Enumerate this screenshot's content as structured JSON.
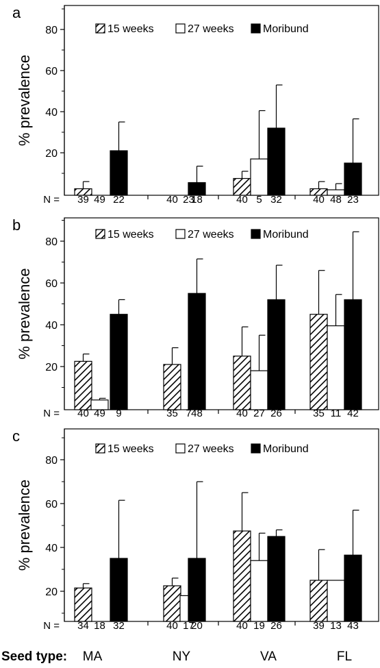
{
  "chart_data": [
    {
      "type": "bar",
      "panel_label": "a",
      "ylabel": "% prevalence",
      "ylim": [
        0,
        95
      ],
      "yticks": [
        20,
        40,
        60,
        80
      ],
      "categories": [
        "MA",
        "NY",
        "VA",
        "FL"
      ],
      "n_label": "N =",
      "legend_position": "top-center",
      "series": [
        {
          "name": "15 weeks",
          "pattern": "hatched",
          "values": [
            2.5,
            0,
            7.5,
            2.5
          ],
          "error": [
            3.5,
            0,
            3.5,
            3.5
          ],
          "n": [
            "39",
            "40",
            "40",
            "40"
          ]
        },
        {
          "name": "27 weeks",
          "pattern": "white",
          "values": [
            0,
            0,
            17,
            2
          ],
          "error": [
            0,
            0,
            23.5,
            3
          ],
          "n": [
            "49",
            "23",
            "5",
            "48"
          ]
        },
        {
          "name": "Moribund",
          "pattern": "black",
          "values": [
            21,
            5.5,
            32,
            15
          ],
          "error": [
            14,
            8,
            21,
            21.5
          ],
          "n": [
            "22",
            "18",
            "32",
            "23"
          ]
        }
      ]
    },
    {
      "type": "bar",
      "panel_label": "b",
      "ylabel": "% prevalence",
      "ylim": [
        0,
        90
      ],
      "yticks": [
        20,
        40,
        60,
        80
      ],
      "categories": [
        "MA",
        "NY",
        "VA",
        "FL"
      ],
      "n_label": "N =",
      "legend_position": "top-center",
      "series": [
        {
          "name": "15 weeks",
          "pattern": "hatched",
          "values": [
            22.5,
            21,
            25,
            45
          ],
          "error": [
            3.5,
            8,
            14,
            21
          ],
          "n": [
            "40",
            "35",
            "40",
            "35"
          ]
        },
        {
          "name": "27 weeks",
          "pattern": "white",
          "values": [
            4,
            0,
            18,
            39.5
          ],
          "error": [
            0.8,
            0,
            17,
            15
          ],
          "n": [
            "49",
            "7",
            "27",
            "11"
          ]
        },
        {
          "name": "Moribund",
          "pattern": "black",
          "values": [
            45,
            55,
            52,
            52
          ],
          "error": [
            7,
            16.5,
            16.5,
            32.5
          ],
          "n": [
            "9",
            "48",
            "26",
            "42"
          ]
        }
      ]
    },
    {
      "type": "bar",
      "panel_label": "c",
      "ylabel": "% prevalence",
      "ylim": [
        10,
        100
      ],
      "yticks": [
        20,
        40,
        60,
        80
      ],
      "categories": [
        "MA",
        "NY",
        "VA",
        "FL"
      ],
      "n_label": "N =",
      "legend_position": "top-center",
      "series": [
        {
          "name": "15 weeks",
          "pattern": "hatched",
          "values": [
            21.5,
            22.5,
            47.5,
            25
          ],
          "error": [
            2,
            3.5,
            17.5,
            14
          ],
          "n": [
            "34",
            "40",
            "40",
            "39"
          ]
        },
        {
          "name": "27 weeks",
          "pattern": "white",
          "values": [
            0,
            18,
            34,
            25
          ],
          "error": [
            0,
            12,
            12.5,
            0
          ],
          "n": [
            "18",
            "17",
            "19",
            "13"
          ]
        },
        {
          "name": "Moribund",
          "pattern": "black",
          "values": [
            35,
            35,
            45,
            36.5
          ],
          "error": [
            26.5,
            35,
            3,
            20.5
          ],
          "n": [
            "32",
            "20",
            "26",
            "43"
          ]
        }
      ]
    }
  ],
  "xaxis": {
    "label": "Seed type:",
    "categories": [
      "MA",
      "NY",
      "VA",
      "FL"
    ]
  }
}
